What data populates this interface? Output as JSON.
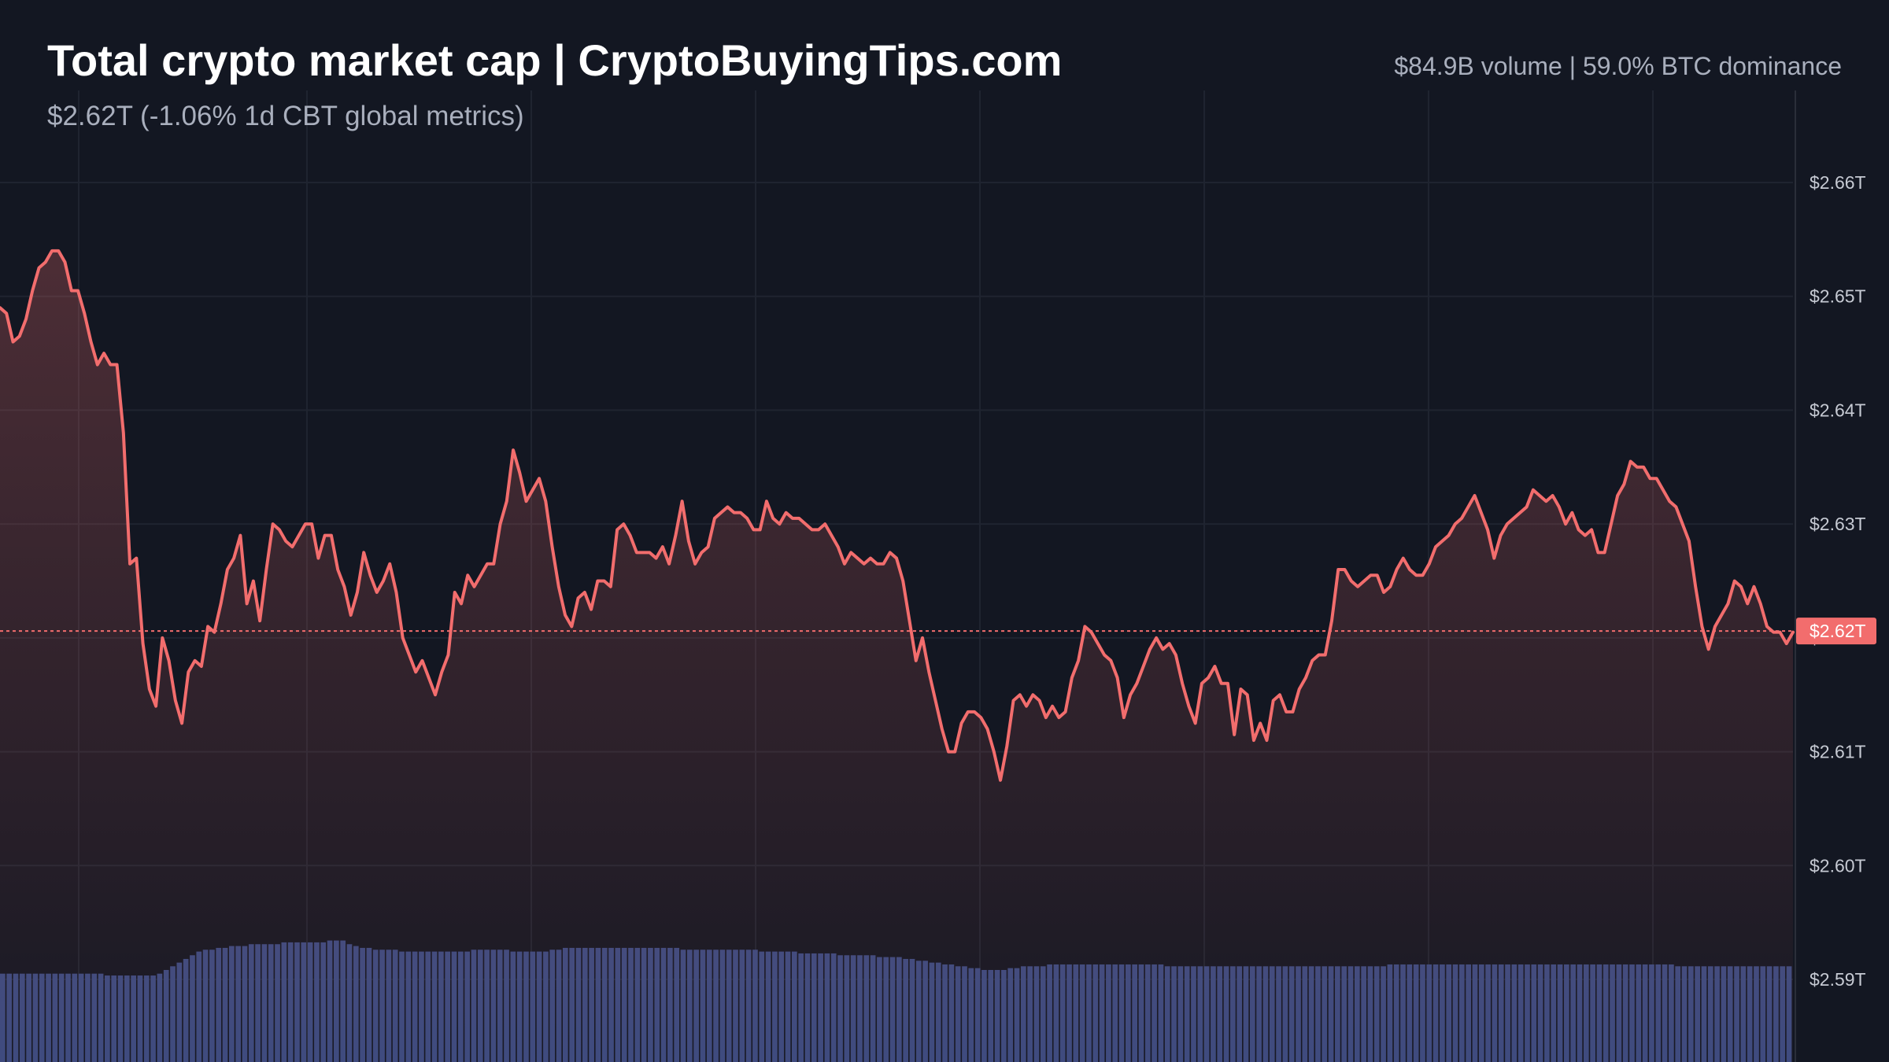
{
  "header": {
    "title": "Total crypto market cap | CryptoBuyingTips.com",
    "subtitle": "$2.62T (-1.06% 1d CBT global metrics)",
    "stats": "$84.9B volume | 59.0% BTC dominance"
  },
  "colors": {
    "background": "#131722",
    "line": "#f26d6d",
    "volume": "#3b4a7f",
    "grid": "#1f2430",
    "price_tag": "#f26d6d"
  },
  "chart_data": {
    "type": "line",
    "title": "Total crypto market cap | CryptoBuyingTips.com",
    "ylim": [
      2.585,
      2.667
    ],
    "y_unit": "T",
    "y_ticks": [
      2.66,
      2.65,
      2.64,
      2.63,
      2.62,
      2.61,
      2.6,
      2.59
    ],
    "y_tick_labels": [
      "$2.66T",
      "$2.65T",
      "$2.64T",
      "$2.63T",
      "$2.62T",
      "$2.61T",
      "$2.60T",
      "$2.59T"
    ],
    "current_value": 2.6206,
    "current_label": "$2.62T",
    "grid": true,
    "series": [
      {
        "values": [
          2.649,
          2.6485,
          2.646,
          2.6465,
          2.648,
          2.6505,
          2.6525,
          2.653,
          2.654,
          2.654,
          2.653,
          2.6505,
          2.6505,
          2.6485,
          2.646,
          2.644,
          2.645,
          2.644,
          2.644,
          2.638,
          2.6265,
          2.627,
          2.6195,
          2.6155,
          2.614,
          2.62,
          2.618,
          2.6145,
          2.6125,
          2.617,
          2.618,
          2.6175,
          2.621,
          2.6205,
          2.623,
          2.626,
          2.627,
          2.629,
          2.623,
          2.625,
          2.6215,
          2.626,
          2.63,
          2.6295,
          2.6285,
          2.628,
          2.629,
          2.63,
          2.63,
          2.627,
          2.629,
          2.629,
          2.626,
          2.6245,
          2.622,
          2.624,
          2.6275,
          2.6255,
          2.624,
          2.625,
          2.6265,
          2.624,
          2.62,
          2.6185,
          2.617,
          2.618,
          2.6165,
          2.615,
          2.617,
          2.6185,
          2.624,
          2.623,
          2.6255,
          2.6245,
          2.6255,
          2.6265,
          2.6265,
          2.63,
          2.632,
          2.6365,
          2.6345,
          2.632,
          2.633,
          2.634,
          2.632,
          2.628,
          2.6245,
          2.622,
          2.621,
          2.6235,
          2.624,
          2.6225,
          2.625,
          2.625,
          2.6245,
          2.6295,
          2.63,
          2.629,
          2.6275,
          2.6275,
          2.6275,
          2.627,
          2.628,
          2.6265,
          2.629,
          2.632,
          2.6285,
          2.6265,
          2.6275,
          2.628,
          2.6305,
          2.631,
          2.6315,
          2.631,
          2.631,
          2.6305,
          2.6295,
          2.6295,
          2.632,
          2.6305,
          2.63,
          2.631,
          2.6305,
          2.6305,
          2.63,
          2.6295,
          2.6295,
          2.63,
          2.629,
          2.628,
          2.6265,
          2.6275,
          2.627,
          2.6265,
          2.627,
          2.6265,
          2.6265,
          2.6275,
          2.627,
          2.625,
          2.6215,
          2.618,
          2.62,
          2.617,
          2.6145,
          2.612,
          2.61,
          2.61,
          2.6125,
          2.6135,
          2.6135,
          2.613,
          2.612,
          2.61,
          2.6075,
          2.6105,
          2.6145,
          2.615,
          2.614,
          2.615,
          2.6145,
          2.613,
          2.614,
          2.613,
          2.6135,
          2.6165,
          2.618,
          2.621,
          2.6205,
          2.6195,
          2.6185,
          2.618,
          2.6165,
          2.613,
          2.615,
          2.616,
          2.6175,
          2.619,
          2.62,
          2.619,
          2.6195,
          2.6185,
          2.616,
          2.614,
          2.6125,
          2.616,
          2.6165,
          2.6175,
          2.616,
          2.616,
          2.6115,
          2.6155,
          2.615,
          2.611,
          2.6125,
          2.611,
          2.6145,
          2.615,
          2.6135,
          2.6135,
          2.6155,
          2.6165,
          2.618,
          2.6185,
          2.6185,
          2.6215,
          2.626,
          2.626,
          2.625,
          2.6245,
          2.625,
          2.6255,
          2.6255,
          2.624,
          2.6245,
          2.626,
          2.627,
          2.626,
          2.6255,
          2.6255,
          2.6265,
          2.628,
          2.6285,
          2.629,
          2.63,
          2.6305,
          2.6315,
          2.6325,
          2.631,
          2.6295,
          2.627,
          2.629,
          2.63,
          2.6305,
          2.631,
          2.6315,
          2.633,
          2.6325,
          2.632,
          2.6325,
          2.6315,
          2.63,
          2.631,
          2.6295,
          2.629,
          2.6295,
          2.6275,
          2.6275,
          2.63,
          2.6325,
          2.6335,
          2.6355,
          2.635,
          2.635,
          2.634,
          2.634,
          2.633,
          2.632,
          2.6315,
          2.63,
          2.6285,
          2.6245,
          2.621,
          2.619,
          2.621,
          2.622,
          2.623,
          2.625,
          2.6245,
          2.623,
          2.6245,
          2.623,
          2.621,
          2.6205,
          2.6205,
          2.6195,
          2.6205
        ]
      }
    ],
    "volume_values": [
      0.48,
      0.48,
      0.48,
      0.48,
      0.48,
      0.48,
      0.48,
      0.48,
      0.48,
      0.48,
      0.48,
      0.48,
      0.48,
      0.48,
      0.48,
      0.48,
      0.47,
      0.47,
      0.47,
      0.47,
      0.47,
      0.47,
      0.47,
      0.47,
      0.48,
      0.5,
      0.52,
      0.54,
      0.56,
      0.58,
      0.6,
      0.61,
      0.61,
      0.62,
      0.62,
      0.63,
      0.63,
      0.63,
      0.64,
      0.64,
      0.64,
      0.64,
      0.64,
      0.65,
      0.65,
      0.65,
      0.65,
      0.65,
      0.65,
      0.65,
      0.66,
      0.66,
      0.66,
      0.64,
      0.63,
      0.62,
      0.62,
      0.61,
      0.61,
      0.61,
      0.61,
      0.6,
      0.6,
      0.6,
      0.6,
      0.6,
      0.6,
      0.6,
      0.6,
      0.6,
      0.6,
      0.6,
      0.61,
      0.61,
      0.61,
      0.61,
      0.61,
      0.61,
      0.6,
      0.6,
      0.6,
      0.6,
      0.6,
      0.6,
      0.61,
      0.61,
      0.62,
      0.62,
      0.62,
      0.62,
      0.62,
      0.62,
      0.62,
      0.62,
      0.62,
      0.62,
      0.62,
      0.62,
      0.62,
      0.62,
      0.62,
      0.62,
      0.62,
      0.62,
      0.61,
      0.61,
      0.61,
      0.61,
      0.61,
      0.61,
      0.61,
      0.61,
      0.61,
      0.61,
      0.61,
      0.61,
      0.6,
      0.6,
      0.6,
      0.6,
      0.6,
      0.6,
      0.59,
      0.59,
      0.59,
      0.59,
      0.59,
      0.59,
      0.58,
      0.58,
      0.58,
      0.58,
      0.58,
      0.58,
      0.57,
      0.57,
      0.57,
      0.57,
      0.56,
      0.56,
      0.55,
      0.55,
      0.54,
      0.54,
      0.53,
      0.53,
      0.52,
      0.52,
      0.51,
      0.51,
      0.5,
      0.5,
      0.5,
      0.5,
      0.51,
      0.51,
      0.52,
      0.52,
      0.52,
      0.52,
      0.53,
      0.53,
      0.53,
      0.53,
      0.53,
      0.53,
      0.53,
      0.53,
      0.53,
      0.53,
      0.53,
      0.53,
      0.53,
      0.53,
      0.53,
      0.53,
      0.53,
      0.53,
      0.52,
      0.52,
      0.52,
      0.52,
      0.52,
      0.52,
      0.52,
      0.52,
      0.52,
      0.52,
      0.52,
      0.52,
      0.52,
      0.52,
      0.52,
      0.52,
      0.52,
      0.52,
      0.52,
      0.52,
      0.52,
      0.52,
      0.52,
      0.52,
      0.52,
      0.52,
      0.52,
      0.52,
      0.52,
      0.52,
      0.52,
      0.52,
      0.52,
      0.52,
      0.53,
      0.53,
      0.53,
      0.53,
      0.53,
      0.53,
      0.53,
      0.53,
      0.53,
      0.53,
      0.53,
      0.53,
      0.53,
      0.53,
      0.53,
      0.53,
      0.53,
      0.53,
      0.53,
      0.53,
      0.53,
      0.53,
      0.53,
      0.53,
      0.53,
      0.53,
      0.53,
      0.53,
      0.53,
      0.53,
      0.53,
      0.53,
      0.53,
      0.53,
      0.53,
      0.53,
      0.53,
      0.53,
      0.53,
      0.53,
      0.53,
      0.53,
      0.53,
      0.53,
      0.52,
      0.52,
      0.52,
      0.52,
      0.52,
      0.52,
      0.52,
      0.52,
      0.52,
      0.52,
      0.52,
      0.52,
      0.52,
      0.52,
      0.52,
      0.52,
      0.52,
      0.52
    ]
  }
}
